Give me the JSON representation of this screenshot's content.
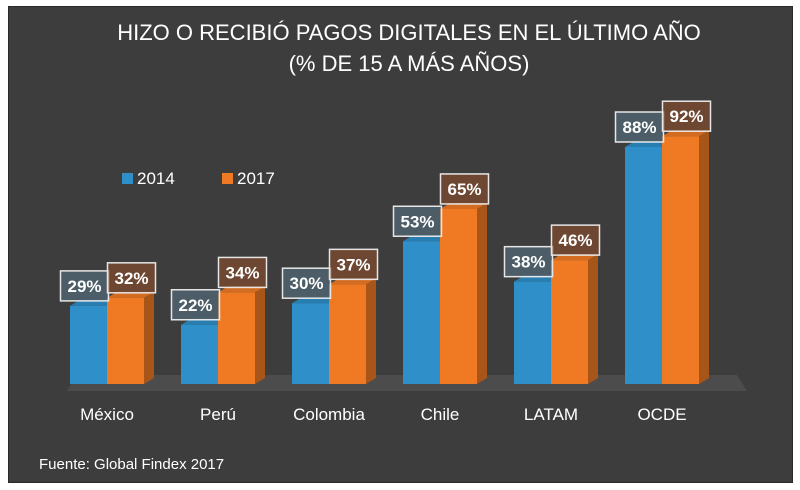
{
  "chart_data": {
    "type": "bar",
    "title": "HIZO O RECIBIÓ PAGOS DIGITALES EN EL ÚLTIMO AÑO",
    "subtitle": "(% DE 15 A MÁS AÑOS)",
    "categories": [
      "México",
      "Perú",
      "Colombia",
      "Chile",
      "LATAM",
      "OCDE"
    ],
    "series": [
      {
        "name": "2014",
        "values": [
          29,
          22,
          30,
          53,
          38,
          88
        ],
        "labels": [
          "29%",
          "22%",
          "30%",
          "53%",
          "38%",
          "88%"
        ],
        "color": "#2e8fc9"
      },
      {
        "name": "2017",
        "values": [
          32,
          34,
          37,
          65,
          46,
          92
        ],
        "labels": [
          "32%",
          "34%",
          "37%",
          "65%",
          "46%",
          "92%"
        ],
        "color": "#f07a24"
      }
    ],
    "ylim": [
      0,
      100
    ],
    "grid": false,
    "legend_position": "top-left",
    "source": "Fuente: Global Findex 2017",
    "background": "#3d3d3d"
  }
}
